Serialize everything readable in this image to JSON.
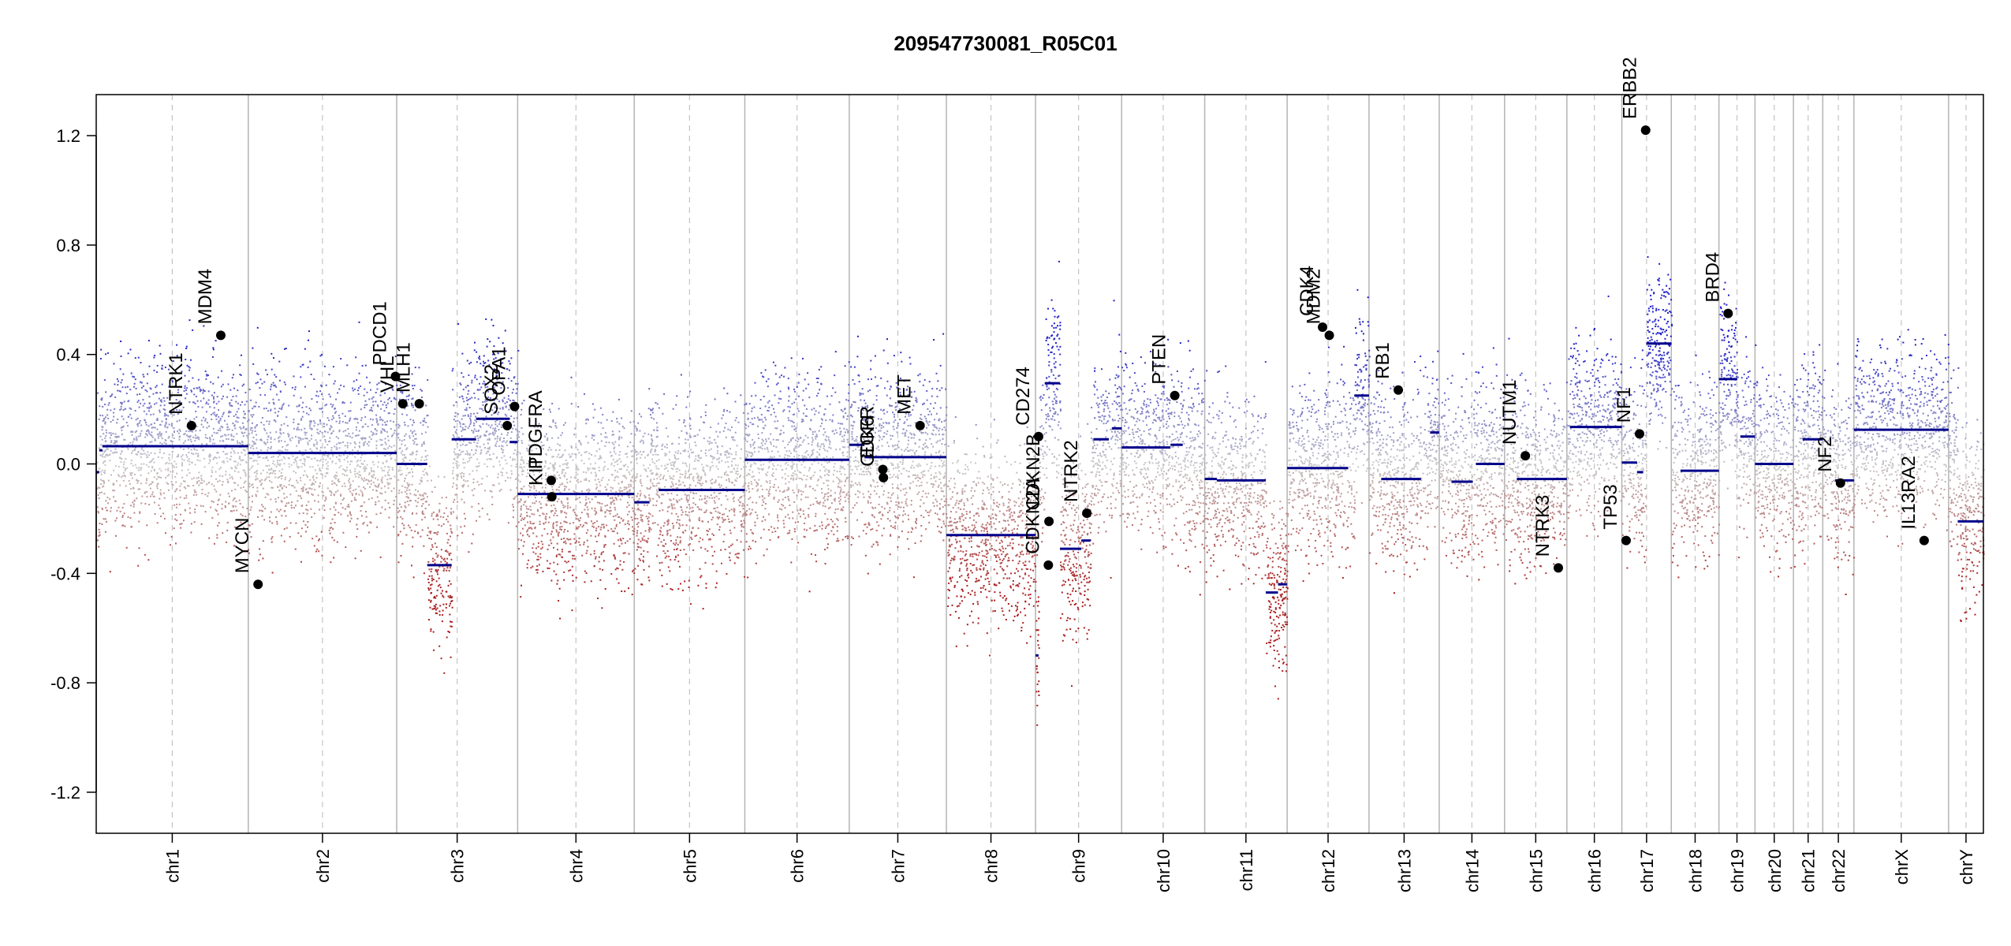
{
  "chart_data": {
    "type": "scatter",
    "title": "209547730081_R05C01",
    "xlabel": "",
    "ylabel": "",
    "ylim": [
      -1.35,
      1.35
    ],
    "y_ticks": [
      "1.2",
      "0.8",
      "0.4",
      "0.0",
      "-0.4",
      "-0.8",
      "-1.2"
    ],
    "chromosomes": [
      {
        "name": "chr1",
        "length": 249
      },
      {
        "name": "chr2",
        "length": 243
      },
      {
        "name": "chr3",
        "length": 198
      },
      {
        "name": "chr4",
        "length": 191
      },
      {
        "name": "chr5",
        "length": 181
      },
      {
        "name": "chr6",
        "length": 171
      },
      {
        "name": "chr7",
        "length": 159
      },
      {
        "name": "chr8",
        "length": 146
      },
      {
        "name": "chr9",
        "length": 141
      },
      {
        "name": "chr10",
        "length": 136
      },
      {
        "name": "chr11",
        "length": 135
      },
      {
        "name": "chr12",
        "length": 134
      },
      {
        "name": "chr13",
        "length": 115
      },
      {
        "name": "chr14",
        "length": 107
      },
      {
        "name": "chr15",
        "length": 102
      },
      {
        "name": "chr16",
        "length": 90
      },
      {
        "name": "chr17",
        "length": 81
      },
      {
        "name": "chr18",
        "length": 78
      },
      {
        "name": "chr19",
        "length": 59
      },
      {
        "name": "chr20",
        "length": 63
      },
      {
        "name": "chr21",
        "length": 48
      },
      {
        "name": "chr22",
        "length": 51
      },
      {
        "name": "chrX",
        "length": 155
      },
      {
        "name": "chrY",
        "length": 57
      }
    ],
    "segments": [
      {
        "chr": "chr1",
        "start": 0,
        "end": 5,
        "value": -0.03
      },
      {
        "chr": "chr1",
        "start": 5,
        "end": 10,
        "value": 0.05
      },
      {
        "chr": "chr1",
        "start": 10,
        "end": 249,
        "value": 0.065
      },
      {
        "chr": "chr2",
        "start": 0,
        "end": 243,
        "value": 0.04
      },
      {
        "chr": "chr3",
        "start": 0,
        "end": 50,
        "value": 0.0
      },
      {
        "chr": "chr3",
        "start": 50,
        "end": 90,
        "value": -0.37
      },
      {
        "chr": "chr3",
        "start": 90,
        "end": 130,
        "value": 0.09
      },
      {
        "chr": "chr3",
        "start": 130,
        "end": 185,
        "value": 0.165
      },
      {
        "chr": "chr3",
        "start": 185,
        "end": 198,
        "value": 0.08
      },
      {
        "chr": "chr4",
        "start": 0,
        "end": 191,
        "value": -0.11
      },
      {
        "chr": "chr5",
        "start": 0,
        "end": 25,
        "value": -0.14
      },
      {
        "chr": "chr5",
        "start": 40,
        "end": 181,
        "value": -0.095
      },
      {
        "chr": "chr6",
        "start": 0,
        "end": 171,
        "value": 0.015
      },
      {
        "chr": "chr7",
        "start": 0,
        "end": 25,
        "value": 0.07
      },
      {
        "chr": "chr7",
        "start": 25,
        "end": 159,
        "value": 0.025
      },
      {
        "chr": "chr8",
        "start": 0,
        "end": 146,
        "value": -0.26
      },
      {
        "chr": "chr9",
        "start": 0,
        "end": 5,
        "value": -0.7
      },
      {
        "chr": "chr9",
        "start": 15,
        "end": 40,
        "value": 0.295
      },
      {
        "chr": "chr9",
        "start": 40,
        "end": 75,
        "value": -0.31
      },
      {
        "chr": "chr9",
        "start": 75,
        "end": 90,
        "value": -0.28
      },
      {
        "chr": "chr9",
        "start": 95,
        "end": 120,
        "value": 0.09
      },
      {
        "chr": "chr9",
        "start": 125,
        "end": 141,
        "value": 0.13
      },
      {
        "chr": "chr10",
        "start": 0,
        "end": 80,
        "value": 0.06
      },
      {
        "chr": "chr10",
        "start": 80,
        "end": 100,
        "value": 0.07
      },
      {
        "chr": "chr11",
        "start": 0,
        "end": 20,
        "value": -0.055
      },
      {
        "chr": "chr11",
        "start": 20,
        "end": 100,
        "value": -0.06
      },
      {
        "chr": "chr11",
        "start": 100,
        "end": 120,
        "value": -0.47
      },
      {
        "chr": "chr11",
        "start": 120,
        "end": 135,
        "value": -0.44
      },
      {
        "chr": "chr12",
        "start": 0,
        "end": 100,
        "value": -0.015
      },
      {
        "chr": "chr12",
        "start": 110,
        "end": 134,
        "value": 0.25
      },
      {
        "chr": "chr13",
        "start": 20,
        "end": 85,
        "value": -0.055
      },
      {
        "chr": "chr13",
        "start": 100,
        "end": 115,
        "value": 0.115
      },
      {
        "chr": "chr14",
        "start": 20,
        "end": 55,
        "value": -0.065
      },
      {
        "chr": "chr14",
        "start": 60,
        "end": 107,
        "value": 0.0
      },
      {
        "chr": "chr15",
        "start": 20,
        "end": 102,
        "value": -0.055
      },
      {
        "chr": "chr16",
        "start": 5,
        "end": 90,
        "value": 0.135
      },
      {
        "chr": "chr17",
        "start": 0,
        "end": 25,
        "value": 0.005
      },
      {
        "chr": "chr17",
        "start": 25,
        "end": 35,
        "value": -0.03
      },
      {
        "chr": "chr17",
        "start": 40,
        "end": 81,
        "value": 0.44
      },
      {
        "chr": "chr18",
        "start": 15,
        "end": 78,
        "value": -0.025
      },
      {
        "chr": "chr19",
        "start": 0,
        "end": 30,
        "value": 0.31
      },
      {
        "chr": "chr19",
        "start": 35,
        "end": 59,
        "value": 0.1
      },
      {
        "chr": "chr20",
        "start": 0,
        "end": 63,
        "value": 0.0
      },
      {
        "chr": "chr21",
        "start": 15,
        "end": 48,
        "value": 0.09
      },
      {
        "chr": "chr22",
        "start": 20,
        "end": 51,
        "value": -0.06
      },
      {
        "chr": "chrX",
        "start": 0,
        "end": 155,
        "value": 0.125
      },
      {
        "chr": "chrY",
        "start": 15,
        "end": 57,
        "value": -0.21
      }
    ],
    "genes": [
      {
        "name": "NTRK1",
        "chr": "chr1",
        "pos": 156,
        "value": 0.14
      },
      {
        "name": "MDM4",
        "chr": "chr1",
        "pos": 204,
        "value": 0.47
      },
      {
        "name": "MYCN",
        "chr": "chr2",
        "pos": 16,
        "value": -0.44
      },
      {
        "name": "PDCD1",
        "chr": "chr2",
        "pos": 241,
        "value": 0.32
      },
      {
        "name": "VHL",
        "chr": "chr3",
        "pos": 10,
        "value": 0.22
      },
      {
        "name": "MLH1",
        "chr": "chr3",
        "pos": 37,
        "value": 0.22
      },
      {
        "name": "SOX2",
        "chr": "chr3",
        "pos": 181,
        "value": 0.14
      },
      {
        "name": "OPA1",
        "chr": "chr3",
        "pos": 193,
        "value": 0.21
      },
      {
        "name": "PDGFRA",
        "chr": "chr4",
        "pos": 55,
        "value": -0.06
      },
      {
        "name": "KIT",
        "chr": "chr4",
        "pos": 56,
        "value": -0.12
      },
      {
        "name": "EGFR",
        "chr": "chr7",
        "pos": 55,
        "value": -0.02
      },
      {
        "name": "CDK6",
        "chr": "chr7",
        "pos": 56,
        "value": -0.05
      },
      {
        "name": "MET",
        "chr": "chr7",
        "pos": 116,
        "value": 0.14
      },
      {
        "name": "CD274",
        "chr": "chr9",
        "pos": 5,
        "value": 0.1
      },
      {
        "name": "CDKN2A",
        "chr": "chr9",
        "pos": 21,
        "value": -0.37
      },
      {
        "name": "CDKN2B",
        "chr": "chr9",
        "pos": 22,
        "value": -0.21
      },
      {
        "name": "NTRK2",
        "chr": "chr9",
        "pos": 84,
        "value": -0.18
      },
      {
        "name": "PTEN",
        "chr": "chr10",
        "pos": 87,
        "value": 0.25
      },
      {
        "name": "CDK4",
        "chr": "chr12",
        "pos": 58,
        "value": 0.5
      },
      {
        "name": "MDM2",
        "chr": "chr12",
        "pos": 69,
        "value": 0.47
      },
      {
        "name": "RB1",
        "chr": "chr13",
        "pos": 48,
        "value": 0.27
      },
      {
        "name": "NUTM1",
        "chr": "chr15",
        "pos": 34,
        "value": 0.03
      },
      {
        "name": "NTRK3",
        "chr": "chr15",
        "pos": 88,
        "value": -0.38
      },
      {
        "name": "TP53",
        "chr": "chr17",
        "pos": 7,
        "value": -0.28
      },
      {
        "name": "NF1",
        "chr": "chr17",
        "pos": 29,
        "value": 0.11
      },
      {
        "name": "ERBB2",
        "chr": "chr17",
        "pos": 39,
        "value": 1.22
      },
      {
        "name": "BRD4",
        "chr": "chr19",
        "pos": 15,
        "value": 0.55
      },
      {
        "name": "NF2",
        "chr": "chr22",
        "pos": 29,
        "value": -0.07
      },
      {
        "name": "IL13RA2",
        "chr": "chrX",
        "pos": 115,
        "value": -0.28
      }
    ],
    "colors": {
      "gain": "#2b2bc8",
      "neutral": "#c8c8c8",
      "loss": "#b22222",
      "segment": "#00008b",
      "gene_point": "#000000"
    },
    "grid": true,
    "legend": "none"
  }
}
